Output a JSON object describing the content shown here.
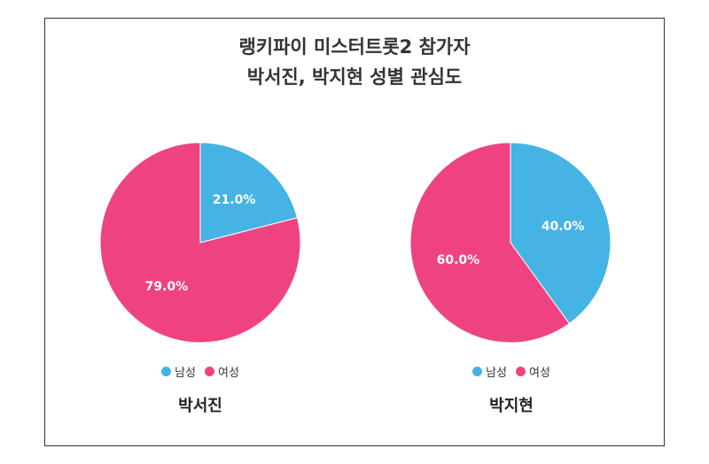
{
  "title_line1": "랭키파이 미스터트롯2 참가자",
  "title_line2": "박서진, 박지현 성별 관심도",
  "colors": {
    "male": "#45B3E3",
    "female": "#EF4381"
  },
  "chart_data": [
    {
      "type": "pie",
      "name": "박서진",
      "labels": [
        "남성",
        "여성"
      ],
      "values": [
        21.0,
        79.0
      ],
      "value_labels": [
        "21.0%",
        "79.0%"
      ],
      "legend": [
        "남성",
        "여성"
      ],
      "legend_position": "bottom"
    },
    {
      "type": "pie",
      "name": "박지현",
      "labels": [
        "남성",
        "여성"
      ],
      "values": [
        40.0,
        60.0
      ],
      "value_labels": [
        "40.0%",
        "60.0%"
      ],
      "legend": [
        "남성",
        "여성"
      ],
      "legend_position": "bottom"
    }
  ]
}
